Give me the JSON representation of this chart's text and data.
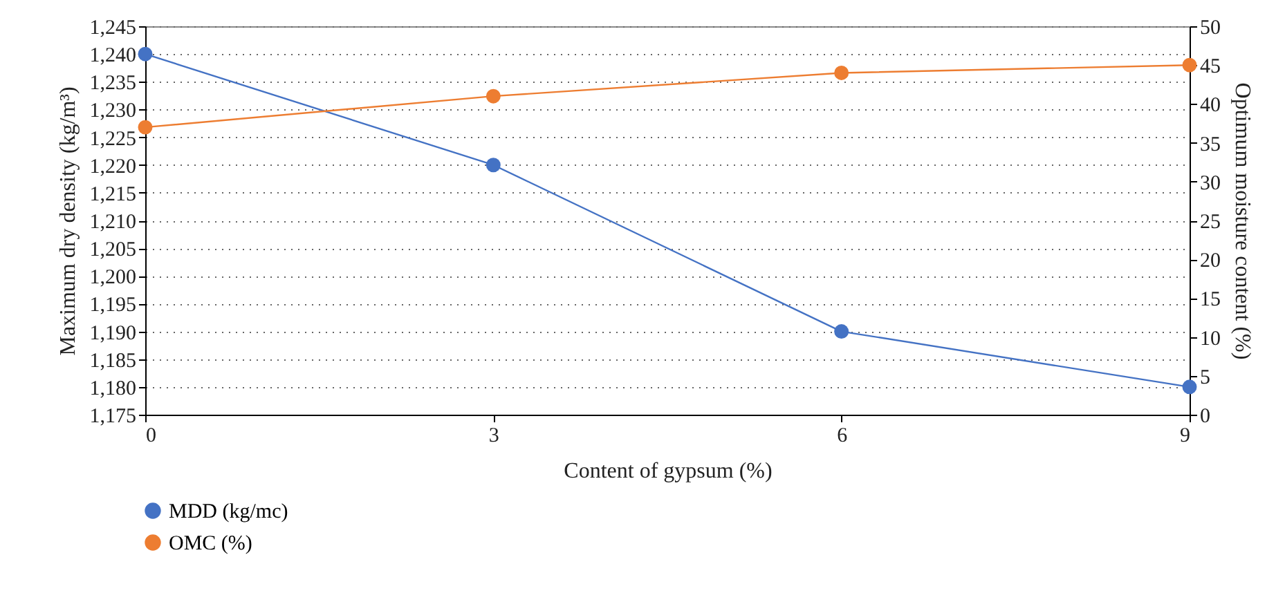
{
  "chart_data": {
    "type": "line",
    "xlabel": "Content of gypsum (%)",
    "ylabel": "Maximum dry density (kg/m³)",
    "y2label": "Optimum moisture content (%)",
    "x": [
      0,
      3,
      6,
      9
    ],
    "xlim": [
      0,
      9
    ],
    "xticks": [
      0,
      3,
      6,
      9
    ],
    "ylim": [
      1175,
      1245
    ],
    "yticks": [
      {
        "value": 1175,
        "label": "1,175"
      },
      {
        "value": 1180,
        "label": "1,180"
      },
      {
        "value": 1185,
        "label": "1,185"
      },
      {
        "value": 1190,
        "label": "1,190"
      },
      {
        "value": 1195,
        "label": "1,195"
      },
      {
        "value": 1200,
        "label": "1,200"
      },
      {
        "value": 1205,
        "label": "1,205"
      },
      {
        "value": 1210,
        "label": "1,210"
      },
      {
        "value": 1215,
        "label": "1,215"
      },
      {
        "value": 1220,
        "label": "1,220"
      },
      {
        "value": 1225,
        "label": "1,225"
      },
      {
        "value": 1230,
        "label": "1,230"
      },
      {
        "value": 1235,
        "label": "1,235"
      },
      {
        "value": 1240,
        "label": "1,240"
      },
      {
        "value": 1245,
        "label": "1,245"
      }
    ],
    "y2lim": [
      0,
      50
    ],
    "y2ticks": [
      0,
      5,
      10,
      15,
      20,
      25,
      30,
      35,
      40,
      45,
      50
    ],
    "series": [
      {
        "name": "MDD (kg/mc)",
        "color": "#4472c4",
        "values": [
          1240,
          1220,
          1190,
          1180
        ]
      },
      {
        "name": "OMC (%)",
        "color": "#ed7d31",
        "axis": "y2",
        "values": [
          37,
          41,
          44,
          45
        ]
      }
    ],
    "grid": "y",
    "legend": "bottom",
    "marker": "circle",
    "line_style": "solid"
  }
}
